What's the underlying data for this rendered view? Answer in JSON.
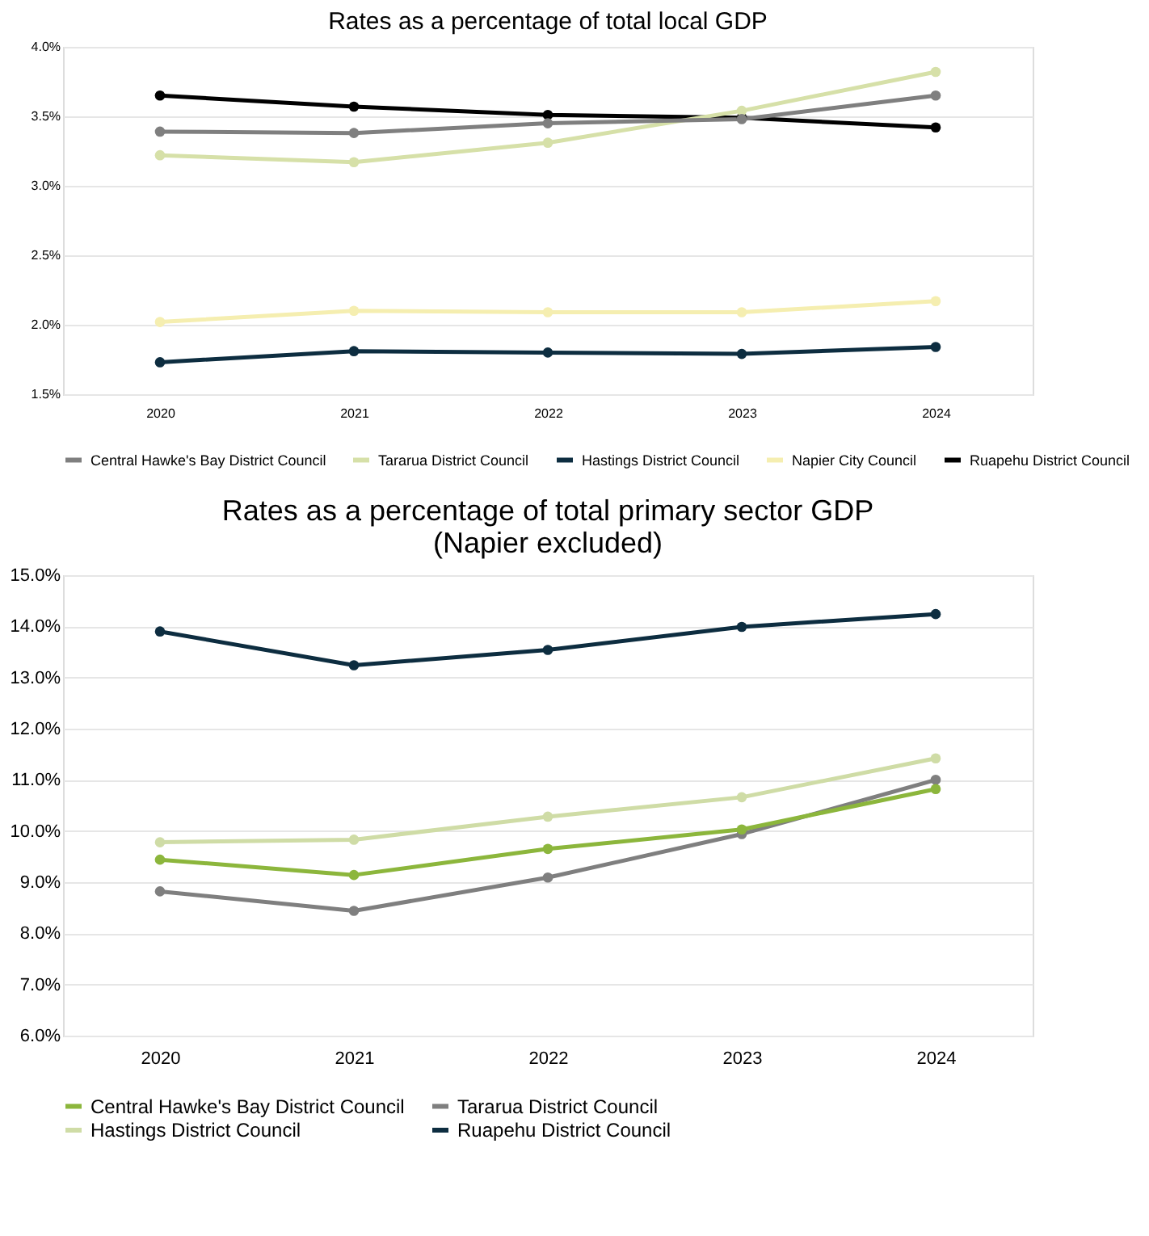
{
  "chart_data": [
    {
      "type": "line",
      "title": "Rates as a percentage of total local GDP",
      "categories": [
        "2020",
        "2021",
        "2022",
        "2023",
        "2024"
      ],
      "series": [
        {
          "name": "Central Hawke's Bay District Council",
          "color": "#7f7f7f",
          "values": [
            3.39,
            3.38,
            3.45,
            3.48,
            3.65
          ]
        },
        {
          "name": "Tararua District Council",
          "color": "#d6e0a8",
          "values": [
            3.22,
            3.17,
            3.31,
            3.54,
            3.82
          ]
        },
        {
          "name": "Hastings District Council",
          "color": "#0d2d40",
          "values": [
            1.73,
            1.81,
            1.8,
            1.79,
            1.84
          ]
        },
        {
          "name": "Napier City Council",
          "color": "#f5eeb0",
          "values": [
            2.02,
            2.1,
            2.09,
            2.09,
            2.17
          ]
        },
        {
          "name": "Ruapehu District Council",
          "color": "#000000",
          "values": [
            3.65,
            3.57,
            3.51,
            3.49,
            3.42
          ]
        }
      ],
      "ylim": [
        1.5,
        4.0
      ],
      "yticks": [
        {
          "value": 1.5,
          "label": "1.5%"
        },
        {
          "value": 2.0,
          "label": "2.0%"
        },
        {
          "value": 2.5,
          "label": "2.5%"
        },
        {
          "value": 3.0,
          "label": "3.0%"
        },
        {
          "value": 3.5,
          "label": "3.5%"
        },
        {
          "value": 4.0,
          "label": "4.0%"
        }
      ],
      "grid": "y",
      "legend": "bottom",
      "marker": "circle",
      "line_style": "solid"
    },
    {
      "type": "line",
      "title": "Rates as a percentage of total primary sector  GDP\n(Napier excluded)",
      "categories": [
        "2020",
        "2021",
        "2022",
        "2023",
        "2024"
      ],
      "series": [
        {
          "name": "Central Hawke's Bay District Council",
          "color": "#8cb63c",
          "values": [
            9.44,
            9.14,
            9.65,
            10.03,
            10.82
          ]
        },
        {
          "name": "Tararua District Council",
          "color": "#7f7f7f",
          "values": [
            8.82,
            8.44,
            9.09,
            9.94,
            11.0
          ]
        },
        {
          "name": "Hastings District Council",
          "color": "#cfdca6",
          "values": [
            9.78,
            9.83,
            10.28,
            10.66,
            11.42
          ]
        },
        {
          "name": "Ruapehu District Council",
          "color": "#0d2d40",
          "values": [
            13.9,
            13.24,
            13.54,
            13.99,
            14.24
          ]
        }
      ],
      "ylim": [
        6.0,
        15.0
      ],
      "yticks": [
        {
          "value": 6,
          "label": "6.0%"
        },
        {
          "value": 7,
          "label": "7.0%"
        },
        {
          "value": 8,
          "label": "8.0%"
        },
        {
          "value": 9,
          "label": "9.0%"
        },
        {
          "value": 10,
          "label": "10.0%"
        },
        {
          "value": 11,
          "label": "11.0%"
        },
        {
          "value": 12,
          "label": "12.0%"
        },
        {
          "value": 13,
          "label": "13.0%"
        },
        {
          "value": 14,
          "label": "14.0%"
        },
        {
          "value": 15,
          "label": "15.0%"
        }
      ],
      "grid": "y",
      "legend": "bottom",
      "marker": "circle",
      "line_style": "solid"
    }
  ]
}
